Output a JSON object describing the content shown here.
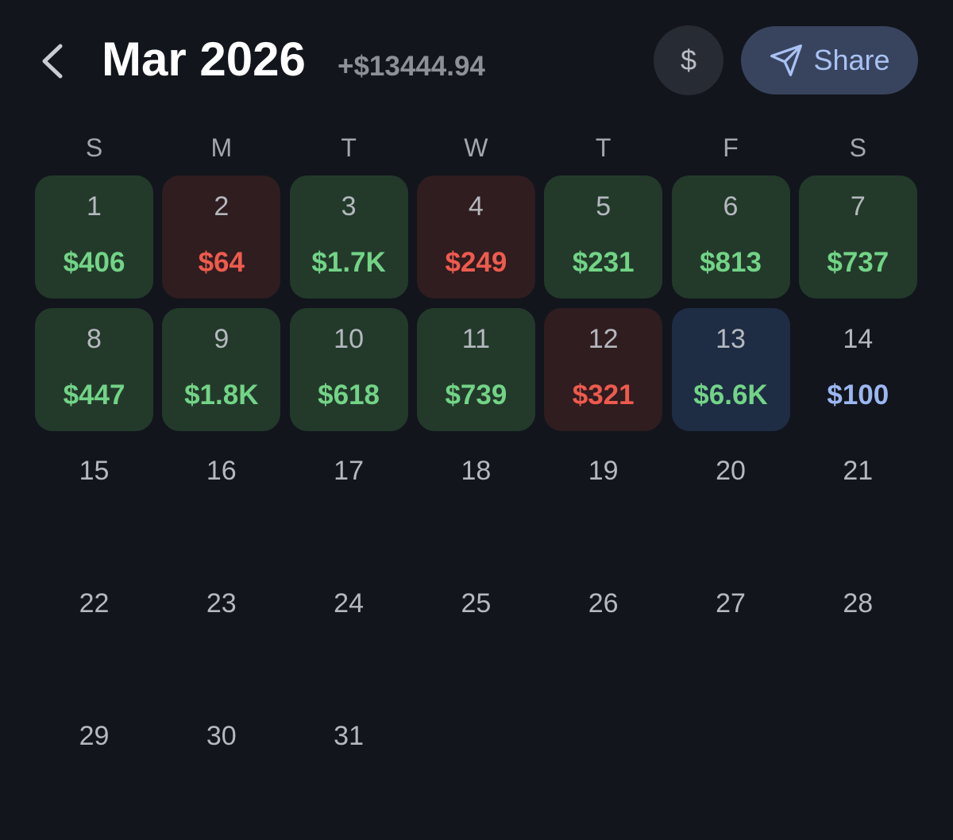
{
  "header": {
    "title": "Mar 2026",
    "total": "+$13444.94",
    "currency_button": "$",
    "share_button": "Share"
  },
  "weekdays": [
    "S",
    "M",
    "T",
    "W",
    "T",
    "F",
    "S"
  ],
  "days": [
    {
      "day": "1",
      "amount": "$406",
      "bg": "#233a2b",
      "fg": "#72d486"
    },
    {
      "day": "2",
      "amount": "$64",
      "bg": "#2f1d1f",
      "fg": "#ef5a4e"
    },
    {
      "day": "3",
      "amount": "$1.7K",
      "bg": "#233a2b",
      "fg": "#72d486"
    },
    {
      "day": "4",
      "amount": "$249",
      "bg": "#2f1d1f",
      "fg": "#ef5a4e"
    },
    {
      "day": "5",
      "amount": "$231",
      "bg": "#233a2b",
      "fg": "#72d486"
    },
    {
      "day": "6",
      "amount": "$813",
      "bg": "#233a2b",
      "fg": "#72d486"
    },
    {
      "day": "7",
      "amount": "$737",
      "bg": "#233a2b",
      "fg": "#72d486"
    },
    {
      "day": "8",
      "amount": "$447",
      "bg": "#233a2b",
      "fg": "#72d486"
    },
    {
      "day": "9",
      "amount": "$1.8K",
      "bg": "#233a2b",
      "fg": "#72d486"
    },
    {
      "day": "10",
      "amount": "$618",
      "bg": "#233a2b",
      "fg": "#72d486"
    },
    {
      "day": "11",
      "amount": "$739",
      "bg": "#233a2b",
      "fg": "#72d486"
    },
    {
      "day": "12",
      "amount": "$321",
      "bg": "#2f1d1f",
      "fg": "#ef5a4e"
    },
    {
      "day": "13",
      "amount": "$6.6K",
      "bg": "#1e2c44",
      "fg": "#72d486"
    },
    {
      "day": "14",
      "amount": "$100",
      "fg": "#9bb7f2"
    },
    {
      "day": "15"
    },
    {
      "day": "16"
    },
    {
      "day": "17"
    },
    {
      "day": "18"
    },
    {
      "day": "19"
    },
    {
      "day": "20"
    },
    {
      "day": "21"
    },
    {
      "day": "22"
    },
    {
      "day": "23"
    },
    {
      "day": "24"
    },
    {
      "day": "25"
    },
    {
      "day": "26"
    },
    {
      "day": "27"
    },
    {
      "day": "28"
    },
    {
      "day": "29"
    },
    {
      "day": "30"
    },
    {
      "day": "31"
    }
  ]
}
